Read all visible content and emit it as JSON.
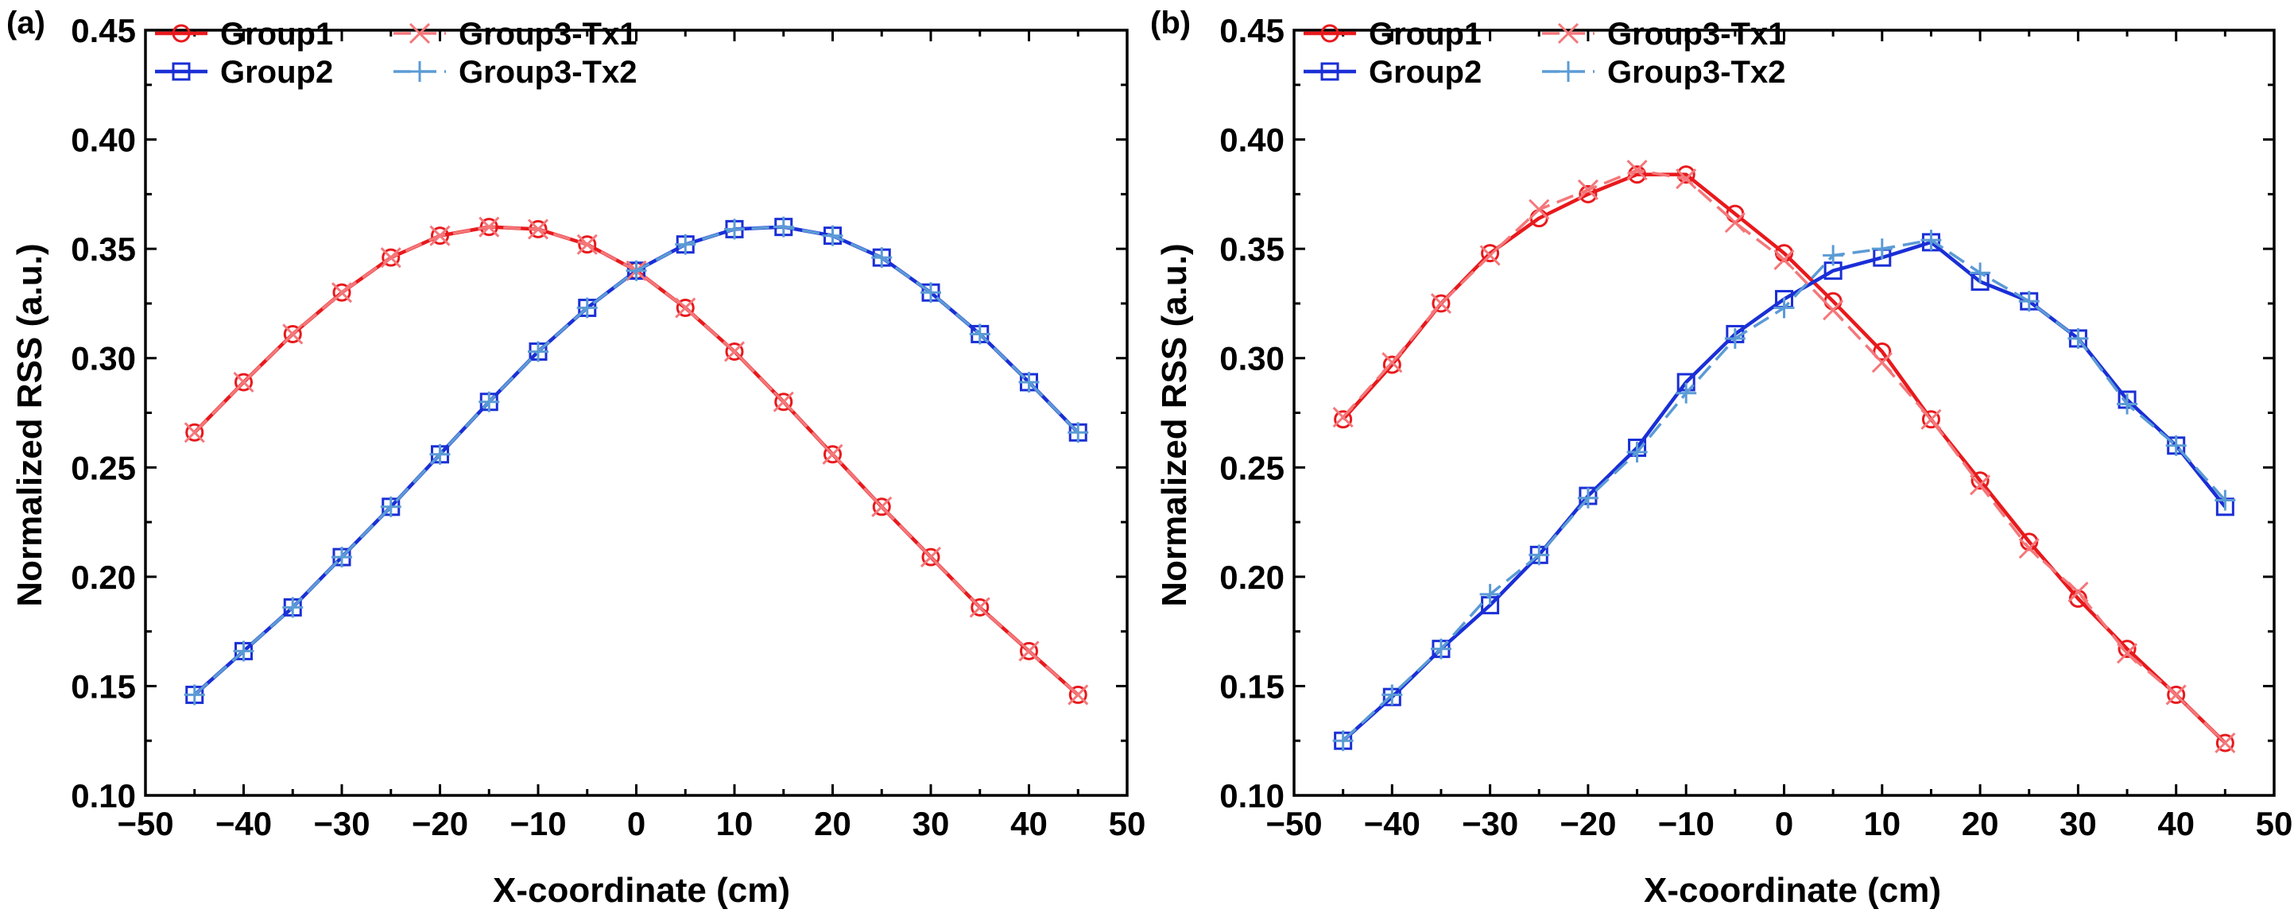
{
  "chart_data": [
    {
      "panel_label": "(a)",
      "type": "line",
      "xlabel": "X-coordinate (cm)",
      "ylabel": "Normalized RSS (a.u.)",
      "xlim": [
        -50,
        50
      ],
      "ylim": [
        0.1,
        0.45
      ],
      "xticks": [
        -50,
        -40,
        -30,
        -20,
        -10,
        0,
        10,
        20,
        30,
        40,
        50
      ],
      "xtick_labels": [
        "−50",
        "−40",
        "−30",
        "−20",
        "−10",
        "0",
        "10",
        "20",
        "30",
        "40",
        "50"
      ],
      "yticks": [
        0.1,
        0.15,
        0.2,
        0.25,
        0.3,
        0.35,
        0.4,
        0.45
      ],
      "ytick_labels": [
        "0.10",
        "0.15",
        "0.20",
        "0.25",
        "0.30",
        "0.35",
        "0.40",
        "0.45"
      ],
      "x": [
        -45,
        -40,
        -35,
        -30,
        -25,
        -20,
        -15,
        -10,
        -5,
        0,
        5,
        10,
        15,
        20,
        25,
        30,
        35,
        40,
        45
      ],
      "legend_position": "top-left",
      "series": [
        {
          "name": "Group1",
          "color": "#e8191c",
          "marker": "circle",
          "dashed": false,
          "values": [
            0.266,
            0.289,
            0.311,
            0.33,
            0.346,
            0.356,
            0.36,
            0.359,
            0.352,
            0.34,
            0.323,
            0.303,
            0.28,
            0.256,
            0.232,
            0.209,
            0.186,
            0.166,
            0.146
          ]
        },
        {
          "name": "Group2",
          "color": "#1a2fd6",
          "marker": "square",
          "dashed": false,
          "values": [
            0.146,
            0.166,
            0.186,
            0.209,
            0.232,
            0.256,
            0.28,
            0.303,
            0.323,
            0.34,
            0.352,
            0.359,
            0.36,
            0.356,
            0.346,
            0.33,
            0.311,
            0.289,
            0.266
          ]
        },
        {
          "name": "Group3-Tx1",
          "color": "#f4777a",
          "marker": "x",
          "dashed": true,
          "values": [
            0.266,
            0.289,
            0.311,
            0.33,
            0.346,
            0.356,
            0.36,
            0.359,
            0.352,
            0.34,
            0.323,
            0.303,
            0.28,
            0.256,
            0.232,
            0.209,
            0.186,
            0.166,
            0.146
          ]
        },
        {
          "name": "Group3-Tx2",
          "color": "#5b9bd5",
          "marker": "plus",
          "dashed": true,
          "values": [
            0.146,
            0.166,
            0.186,
            0.209,
            0.232,
            0.256,
            0.28,
            0.303,
            0.323,
            0.34,
            0.352,
            0.359,
            0.36,
            0.356,
            0.346,
            0.33,
            0.311,
            0.289,
            0.266
          ]
        }
      ]
    },
    {
      "panel_label": "(b)",
      "type": "line",
      "xlabel": "X-coordinate (cm)",
      "ylabel": "Normalized RSS (a.u.)",
      "xlim": [
        -50,
        50
      ],
      "ylim": [
        0.1,
        0.45
      ],
      "xticks": [
        -50,
        -40,
        -30,
        -20,
        -10,
        0,
        10,
        20,
        30,
        40,
        50
      ],
      "xtick_labels": [
        "−50",
        "−40",
        "−30",
        "−20",
        "−10",
        "0",
        "10",
        "20",
        "30",
        "40",
        "50"
      ],
      "yticks": [
        0.1,
        0.15,
        0.2,
        0.25,
        0.3,
        0.35,
        0.4,
        0.45
      ],
      "ytick_labels": [
        "0.10",
        "0.15",
        "0.20",
        "0.25",
        "0.30",
        "0.35",
        "0.40",
        "0.45"
      ],
      "x": [
        -45,
        -40,
        -35,
        -30,
        -25,
        -20,
        -15,
        -10,
        -5,
        0,
        5,
        10,
        15,
        20,
        25,
        30,
        35,
        40,
        45
      ],
      "legend_position": "top-left",
      "series": [
        {
          "name": "Group1",
          "color": "#e8191c",
          "marker": "circle",
          "dashed": false,
          "values": [
            0.272,
            0.297,
            0.325,
            0.348,
            0.364,
            0.375,
            0.384,
            0.384,
            0.366,
            0.348,
            0.326,
            0.303,
            0.272,
            0.244,
            0.216,
            0.19,
            0.167,
            0.146,
            0.124
          ]
        },
        {
          "name": "Group2",
          "color": "#1a2fd6",
          "marker": "square",
          "dashed": false,
          "values": [
            0.125,
            0.145,
            0.167,
            0.187,
            0.21,
            0.237,
            0.259,
            0.289,
            0.311,
            0.327,
            0.34,
            0.346,
            0.353,
            0.335,
            0.326,
            0.309,
            0.281,
            0.26,
            0.232
          ]
        },
        {
          "name": "Group3-Tx1",
          "color": "#f4777a",
          "marker": "x",
          "dashed": true,
          "values": [
            0.273,
            0.298,
            0.325,
            0.347,
            0.368,
            0.377,
            0.386,
            0.382,
            0.362,
            0.345,
            0.322,
            0.298,
            0.272,
            0.242,
            0.213,
            0.193,
            0.165,
            0.146,
            0.124
          ]
        },
        {
          "name": "Group3-Tx2",
          "color": "#5b9bd5",
          "marker": "plus",
          "dashed": true,
          "values": [
            0.125,
            0.146,
            0.167,
            0.192,
            0.21,
            0.236,
            0.257,
            0.284,
            0.309,
            0.323,
            0.347,
            0.35,
            0.354,
            0.339,
            0.326,
            0.309,
            0.279,
            0.26,
            0.235
          ]
        }
      ]
    }
  ]
}
